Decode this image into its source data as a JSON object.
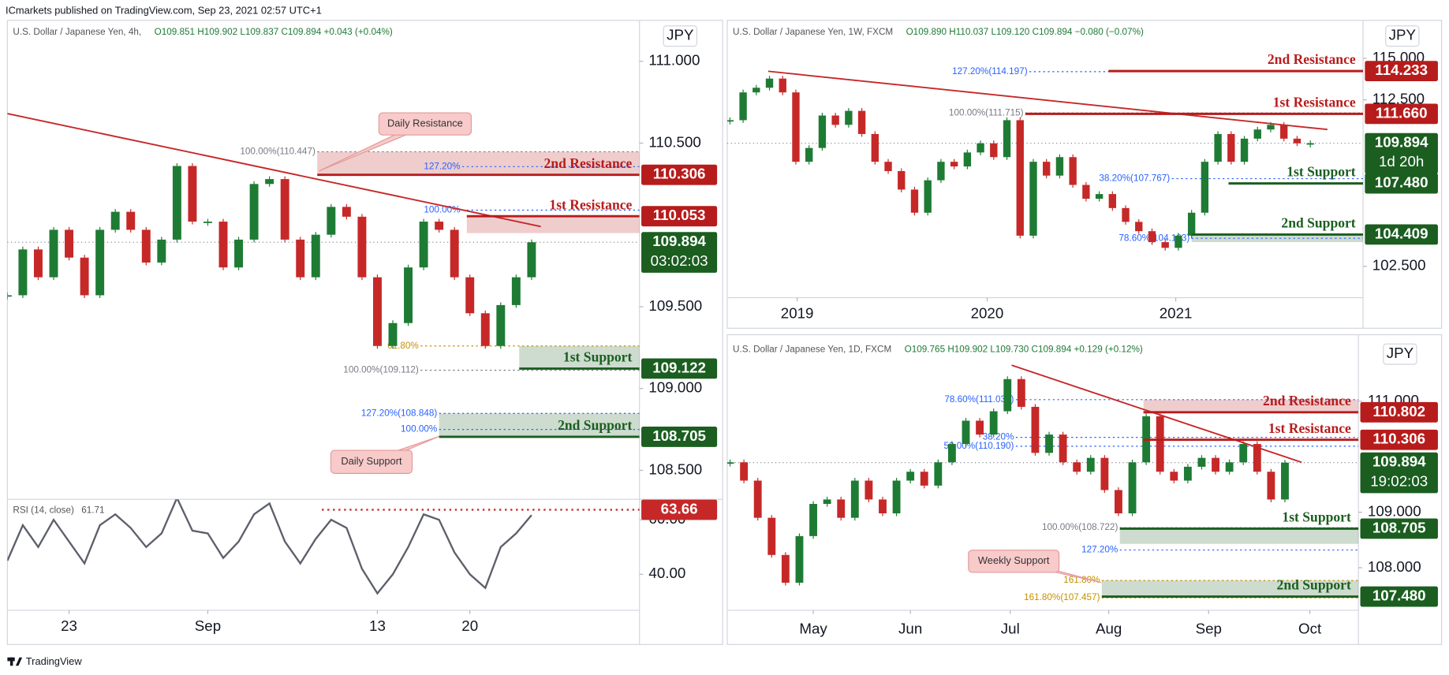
{
  "banner": "ICmarkets published on TradingView.com, Sep 23, 2021 02:57 UTC+1",
  "footer": "TradingView",
  "chart_data": [
    {
      "type": "candlestick",
      "title": "U.S. Dollar / Japanese Yen, 4h,",
      "ohlc": "O109.851 H109.902 L109.837 C109.894 +0.043 (+0.04%)",
      "currency": "JPY",
      "up_color": "#1e7b34",
      "down_color": "#c62828",
      "values": [
        109.57,
        109.85,
        109.68,
        109.97,
        109.8,
        109.57,
        109.97,
        110.08,
        109.97,
        109.77,
        109.91,
        110.36,
        110.02,
        110.02,
        109.74,
        109.91,
        110.25,
        110.28,
        109.91,
        109.68,
        109.94,
        110.11,
        110.05,
        109.68,
        109.26,
        109.4,
        109.74,
        110.02,
        109.97,
        109.68,
        109.46,
        109.26,
        109.51,
        109.68,
        109.894
      ],
      "xlim": [
        0,
        41
      ],
      "xticks": [
        {
          "value": 4,
          "label": "23"
        },
        {
          "value": 13,
          "label": "Sep"
        },
        {
          "value": 24,
          "label": "13"
        },
        {
          "value": 30,
          "label": "20"
        }
      ],
      "ylim": [
        108.34,
        111.25
      ],
      "yticks": [
        {
          "value": 108.5,
          "label": "108.500"
        },
        {
          "value": 109,
          "label": "109.000"
        },
        {
          "value": 109.5,
          "label": "109.500"
        },
        {
          "value": 110.5,
          "label": "110.500"
        },
        {
          "value": 111,
          "label": "111.000"
        }
      ],
      "trendline": {
        "x": [
          0,
          34.6
        ],
        "y": [
          110.68,
          109.99
        ],
        "color": "#c62828"
      },
      "last": {
        "value": 109.894,
        "countdown": "03:02:03",
        "color": "#1b5e20"
      },
      "levels": [
        {
          "name": "2nd Resistance",
          "value": 110.306,
          "color": "#b71c1c",
          "start": 20.1,
          "zone": [
            110.306,
            110.447
          ]
        },
        {
          "name": "1st Resistance",
          "value": 110.053,
          "color": "#b71c1c",
          "start": 29.8,
          "zone": [
            109.95,
            110.053
          ]
        },
        {
          "name": "1st Support",
          "value": 109.122,
          "color": "#1b5e20",
          "start": 33.2,
          "zone": [
            109.122,
            109.26
          ]
        },
        {
          "name": "2nd Support",
          "value": 108.705,
          "color": "#1b5e20",
          "start": 28,
          "zone": [
            108.705,
            108.848
          ]
        }
      ],
      "fibs": [
        {
          "label": "100.00%(110.447)",
          "value": 110.447,
          "x": 20.1,
          "color": "#787b86"
        },
        {
          "label": "127.20%",
          "value": 110.356,
          "x": 29.5,
          "color": "#2962ff"
        },
        {
          "label": "100.00%",
          "value": 110.09,
          "x": 29.5,
          "color": "#2962ff"
        },
        {
          "label": "61.80%",
          "value": 109.26,
          "x": 26.8,
          "color": "#c49000"
        },
        {
          "label": "100.00%(109.112)",
          "value": 109.112,
          "x": 26.8,
          "color": "#787b86"
        },
        {
          "label": "127.20%(108.848)",
          "value": 108.848,
          "x": 28,
          "color": "#2962ff"
        },
        {
          "label": "100.00%",
          "value": 108.75,
          "x": 28,
          "color": "#2962ff"
        }
      ],
      "callouts": [
        "Daily Resistance",
        "Daily Support"
      ],
      "rsi": {
        "label": "RSI (14, close)",
        "value": 61.71,
        "color": "#5d606b",
        "values": [
          45,
          58,
          50,
          60,
          52,
          44,
          58,
          62,
          57,
          50,
          55,
          68,
          56,
          55,
          46,
          52,
          62,
          66,
          52,
          44,
          53,
          60,
          57,
          42,
          33,
          40,
          50,
          62,
          60,
          48,
          40,
          35,
          50,
          55,
          61.71
        ],
        "ylim": [
          26.8,
          67.5
        ],
        "yticks": [
          {
            "value": 40,
            "label": "40.00"
          },
          {
            "value": 60,
            "label": "60.00"
          }
        ],
        "level": 63.66,
        "level_start": 20.4,
        "level_color": "#c62828"
      }
    },
    {
      "type": "candlestick",
      "title": "U.S. Dollar / Japanese Yen, 1W, FXCM",
      "ohlc": "O109.890 H110.037 L109.120 C109.894 −0.080 (−0.07%)",
      "currency": "JPY",
      "up_color": "#1e7b34",
      "down_color": "#c62828",
      "values": [
        111.28,
        112.95,
        113.23,
        113.78,
        112.95,
        108.78,
        109.61,
        111.56,
        111.0,
        111.84,
        110.45,
        108.78,
        108.22,
        107.11,
        105.72,
        107.67,
        108.78,
        108.5,
        109.34,
        109.89,
        109.06,
        111.28,
        104.34,
        108.78,
        107.95,
        109.06,
        107.39,
        106.56,
        106.84,
        106.0,
        105.17,
        104.61,
        103.95,
        103.61,
        104.34,
        105.72,
        108.78,
        110.45,
        108.78,
        110.17,
        110.72,
        111.0,
        110.17,
        109.89,
        109.894
      ],
      "xlim": [
        -0.2,
        48
      ],
      "xticks": [
        {
          "value": 5.1,
          "label": "2019"
        },
        {
          "value": 19.5,
          "label": "2020"
        },
        {
          "value": 33.8,
          "label": "2021"
        }
      ],
      "ylim": [
        100.61,
        117.28
      ],
      "yticks": [
        {
          "value": 102.5,
          "label": "102.500"
        },
        {
          "value": 112.5,
          "label": "112.500"
        },
        {
          "value": 115,
          "label": "115.000"
        }
      ],
      "trendline": {
        "x": [
          2.9,
          45.3
        ],
        "y": [
          114.22,
          110.72
        ],
        "color": "#c62828"
      },
      "last": {
        "value": 109.894,
        "countdown": "1d 20h",
        "color": "#1b5e20"
      },
      "levels": [
        {
          "name": "2nd Resistance",
          "value": 114.233,
          "color": "#b71c1c",
          "start": 28.7
        },
        {
          "name": "1st Resistance",
          "value": 111.66,
          "value_label": "111.660",
          "color": "#b71c1c",
          "start": 22.4
        },
        {
          "name": "1st Support",
          "value": 107.48,
          "value_label": "107.480",
          "color": "#1b5e20",
          "start": 37.8
        },
        {
          "name": "2nd Support",
          "value": 104.409,
          "color": "#1b5e20",
          "start": 35,
          "zone": [
            103.95,
            104.409
          ]
        }
      ],
      "fibs": [
        {
          "label": "127.20%(114.197)",
          "value": 114.197,
          "x": 22.7,
          "color": "#2962ff"
        },
        {
          "label": "100.00%(111.715)",
          "value": 111.715,
          "x": 22.4,
          "color": "#787b86"
        },
        {
          "label": "38.20%(107.767)",
          "value": 107.767,
          "x": 33.5,
          "color": "#2962ff"
        },
        {
          "label": "78.60%(104.183)",
          "value": 104.183,
          "x": 35,
          "color": "#2962ff"
        }
      ]
    },
    {
      "type": "candlestick",
      "title": "U.S. Dollar / Japanese Yen, 1D, FXCM",
      "ohlc": "O109.765 H109.902 L109.730 C109.894 +0.129 (+0.12%)",
      "currency": "JPY",
      "up_color": "#1e7b34",
      "down_color": "#c62828",
      "values": [
        109.9,
        109.57,
        108.9,
        108.23,
        107.73,
        108.57,
        109.15,
        109.23,
        108.9,
        109.57,
        109.23,
        108.98,
        109.57,
        109.73,
        109.48,
        109.9,
        110.23,
        110.65,
        110.4,
        110.82,
        111.4,
        110.9,
        110.07,
        110.4,
        109.9,
        109.73,
        109.98,
        109.4,
        108.98,
        109.9,
        110.73,
        109.73,
        109.57,
        109.82,
        109.98,
        109.73,
        109.9,
        110.23,
        109.73,
        109.23,
        109.894
      ],
      "xlim": [
        -0.2,
        45.3
      ],
      "xticks": [
        {
          "value": 6,
          "label": "May"
        },
        {
          "value": 13,
          "label": "Jun"
        },
        {
          "value": 20.2,
          "label": "Jul"
        },
        {
          "value": 27.3,
          "label": "Aug"
        },
        {
          "value": 34.5,
          "label": "Sep"
        },
        {
          "value": 41.8,
          "label": "Oct"
        }
      ],
      "ylim": [
        107.233,
        112.133
      ],
      "yticks": [
        {
          "value": 108,
          "label": "108.000"
        },
        {
          "value": 109,
          "label": "109.000"
        },
        {
          "value": 111,
          "label": "111.000"
        }
      ],
      "trendline": {
        "x": [
          20.3,
          41.2
        ],
        "y": [
          111.65,
          109.9
        ],
        "color": "#c62828"
      },
      "last": {
        "value": 109.894,
        "countdown": "19:02:03",
        "color": "#1b5e20"
      },
      "levels": [
        {
          "name": "2nd Resistance",
          "value": 110.802,
          "color": "#b71c1c",
          "start": 29.8,
          "zone": [
            110.802,
            111.03
          ]
        },
        {
          "name": "1st Resistance",
          "value": 110.306,
          "color": "#b71c1c",
          "start": 29.8
        },
        {
          "name": "1st Support",
          "value": 108.705,
          "color": "#1b5e20",
          "start": 28.1,
          "zone": [
            108.43,
            108.705
          ]
        },
        {
          "name": "2nd Support",
          "value": 107.48,
          "value_label": "107.480",
          "color": "#1b5e20",
          "start": 26.8,
          "zone": [
            107.48,
            107.77
          ]
        }
      ],
      "fibs": [
        {
          "label": "78.60%(111.030)",
          "value": 111.03,
          "x": 20.6,
          "color": "#2962ff"
        },
        {
          "label": "38.20%",
          "value": 110.35,
          "x": 20.6,
          "color": "#2962ff"
        },
        {
          "label": "50.00%(110.190)",
          "value": 110.19,
          "x": 20.6,
          "color": "#2962ff"
        },
        {
          "label": "100.00%(108.722)",
          "value": 108.722,
          "x": 28.1,
          "color": "#787b86"
        },
        {
          "label": "127.20%",
          "value": 108.32,
          "x": 28.1,
          "color": "#2962ff"
        },
        {
          "label": "161.80%",
          "value": 107.77,
          "x": 26.8,
          "color": "#c49000"
        },
        {
          "label": "161.80%(107.457)",
          "value": 107.457,
          "x": 26.8,
          "color": "#c49000"
        }
      ],
      "callouts": [
        "Weekly Support"
      ]
    }
  ]
}
